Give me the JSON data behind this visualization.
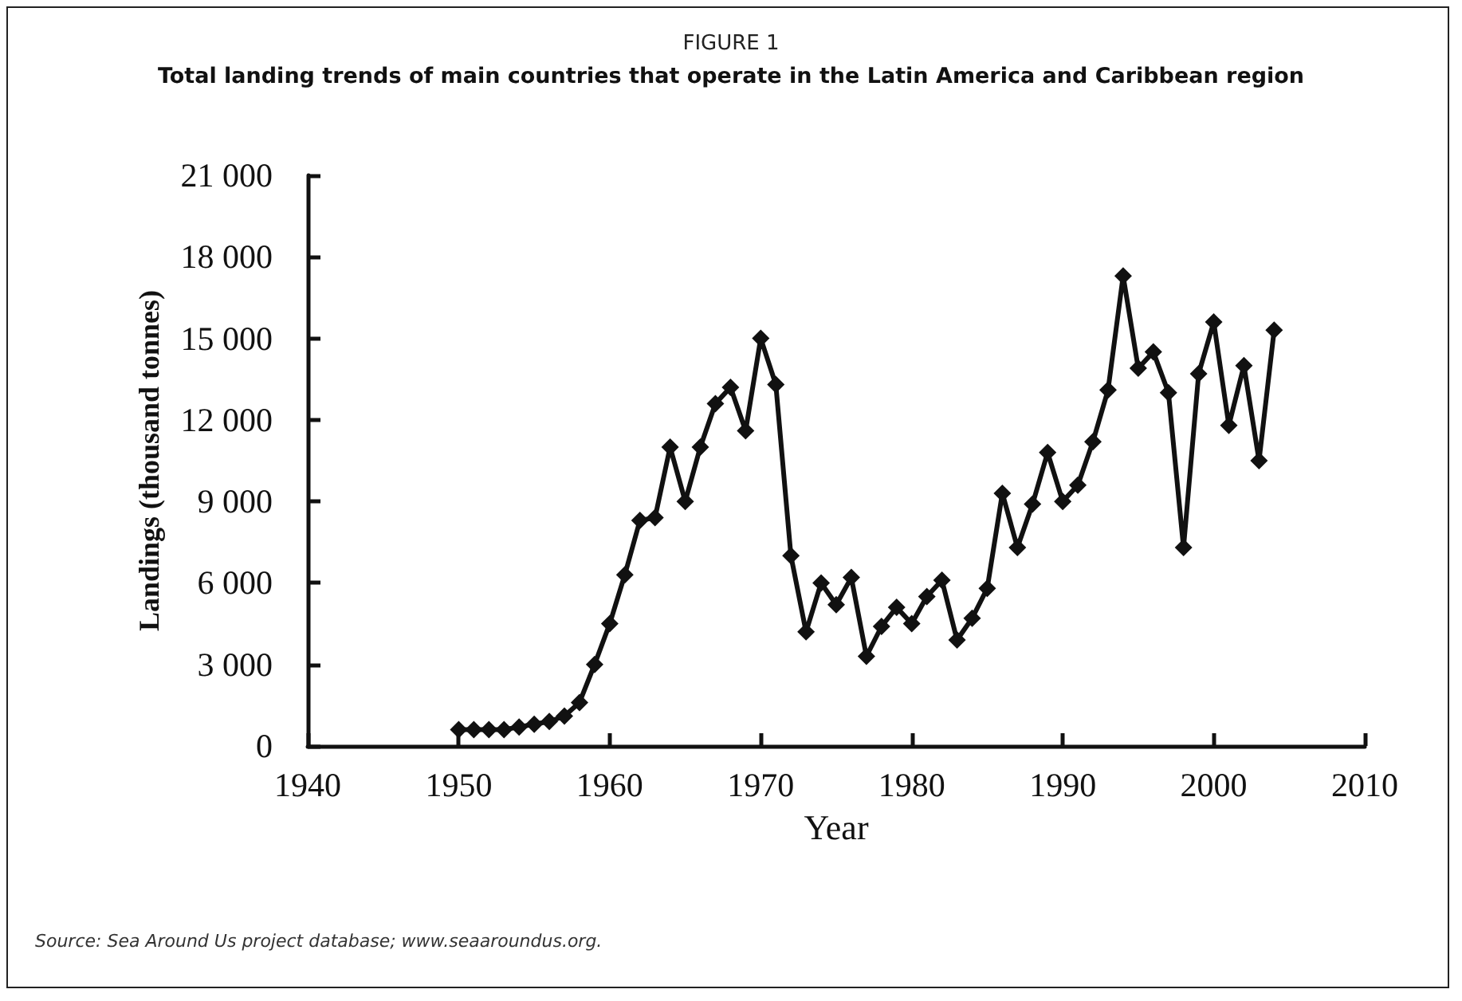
{
  "chart_data": {
    "type": "line",
    "title": "FIGURE 1",
    "subtitle": "Total landing trends of main countries that operate in the Latin America and Caribbean region",
    "xlabel": "Year",
    "ylabel": "Landings (thousand tonnes)",
    "x": [
      1950,
      1951,
      1952,
      1953,
      1954,
      1955,
      1956,
      1957,
      1958,
      1959,
      1960,
      1961,
      1962,
      1963,
      1964,
      1965,
      1966,
      1967,
      1968,
      1969,
      1970,
      1971,
      1972,
      1973,
      1974,
      1975,
      1976,
      1977,
      1978,
      1979,
      1980,
      1981,
      1982,
      1983,
      1984,
      1985,
      1986,
      1987,
      1988,
      1989,
      1990,
      1991,
      1992,
      1993,
      1994,
      1995,
      1996,
      1997,
      1998,
      1999,
      2000,
      2001,
      2002,
      2003,
      2004
    ],
    "series": [
      {
        "color": "#111111",
        "values": [
          600,
          600,
          600,
          600,
          700,
          800,
          900,
          1100,
          1600,
          3000,
          4500,
          6300,
          8300,
          8400,
          11000,
          9000,
          11000,
          12600,
          13200,
          11600,
          15000,
          13300,
          7000,
          4200,
          6000,
          5200,
          6200,
          3300,
          4400,
          5100,
          4500,
          5500,
          6100,
          3900,
          4700,
          5800,
          9300,
          7300,
          8900,
          10800,
          9000,
          9600,
          11200,
          13100,
          17300,
          13900,
          14500,
          13000,
          7300,
          13700,
          15600,
          11800,
          14000,
          10500,
          15300
        ]
      }
    ],
    "xlim": [
      1940,
      2010
    ],
    "xticks": [
      1940,
      1950,
      1960,
      1970,
      1980,
      1990,
      2000,
      2010
    ],
    "ylim": [
      0,
      21000
    ],
    "yticks": [
      0,
      {
        "value": 3000,
        "label": "3 000"
      },
      {
        "value": 6000,
        "label": "6 000"
      },
      {
        "value": 9000,
        "label": "9 000"
      },
      {
        "value": 12000,
        "label": "12 000"
      },
      {
        "value": 15000,
        "label": "15 000"
      },
      {
        "value": 18000,
        "label": "18 000"
      },
      {
        "value": 21000,
        "label": "21 000"
      }
    ],
    "grid": false,
    "marker": "diamond",
    "line_style": "solid",
    "annotations": [
      "Source: Sea Around Us project database; www.seaaroundus.org."
    ]
  }
}
